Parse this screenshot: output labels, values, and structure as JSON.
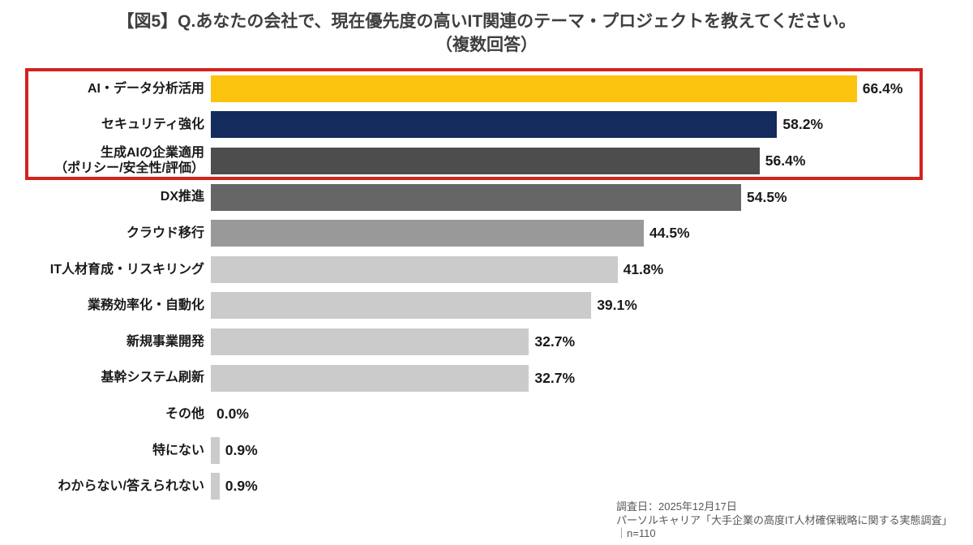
{
  "title": {
    "line1": "【図5】Q.あなたの会社で、現在優先度の高いIT関連のテーマ・プロジェクトを教えてください。",
    "line2": "（複数回答）"
  },
  "chart_data": {
    "type": "bar",
    "orientation": "horizontal",
    "unit": "%",
    "xlim": [
      0,
      75
    ],
    "grid": false,
    "legend": "none",
    "categories": [
      "AI・データ分析活用",
      "セキュリティ強化",
      "生成AIの企業適用\n（ポリシー/安全性/評価）",
      "DX推進",
      "クラウド移行",
      "IT人材育成・リスキリング",
      "業務効率化・自動化",
      "新規事業開発",
      "基幹システム刷新",
      "その他",
      "特にない",
      "わからない/答えられない"
    ],
    "values": [
      66.4,
      58.2,
      56.4,
      54.5,
      44.5,
      41.8,
      39.1,
      32.7,
      32.7,
      0.0,
      0.9,
      0.9
    ],
    "value_labels": [
      "66.4%",
      "58.2%",
      "56.4%",
      "54.5%",
      "44.5%",
      "41.8%",
      "39.1%",
      "32.7%",
      "32.7%",
      "0.0%",
      "0.9%",
      "0.9%"
    ],
    "bar_colors": [
      "#fcc30f",
      "#132b5d",
      "#4d4d4d",
      "#666666",
      "#999999",
      "#cbcbcb",
      "#cbcbcb",
      "#cbcbcb",
      "#cbcbcb",
      "#cbcbcb",
      "#cbcbcb",
      "#cbcbcb"
    ],
    "highlight": {
      "rows_covered": 3,
      "border_color": "#d2231e"
    },
    "n": 110,
    "title": "【図5】Q.あなたの会社で、現在優先度の高いIT関連のテーマ・プロジェクトを教えてください。（複数回答）"
  },
  "footer": {
    "line1": "調査日：2025年12月17日",
    "line2": "パーソルキャリア「大手企業の高度IT人材確保戦略に関する実態調査」",
    "line3": "｜n=110"
  },
  "colors": {
    "accent_yellow": "#fcc30f",
    "accent_navy": "#132b5d",
    "highlight_red": "#d2231e",
    "title_gray": "#3f3f3f",
    "footer_gray": "#595959"
  }
}
